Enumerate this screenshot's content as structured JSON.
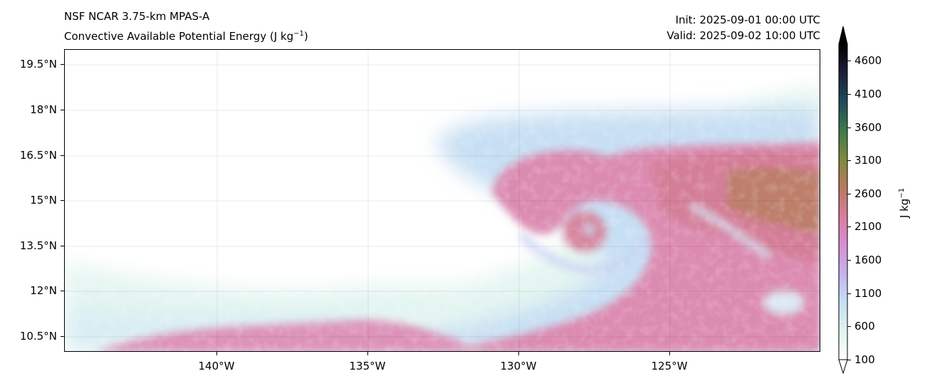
{
  "header": {
    "model": "NSF NCAR 3.75-km MPAS-A",
    "field_name": "Convective Available Potential Energy (J kg",
    "field_unit_exp": "−1",
    "field_close": ")",
    "init": "Init: 2025-09-01 00:00 UTC",
    "valid": "Valid: 2025-09-02 10:00 UTC"
  },
  "map": {
    "lat_labels": [
      "19.5°N",
      "18°N",
      "16.5°N",
      "15°N",
      "13.5°N",
      "12°N",
      "10.5°N"
    ],
    "lon_labels": [
      "140°W",
      "135°W",
      "130°W",
      "125°W"
    ]
  },
  "colorbar": {
    "label": "J kg",
    "label_exp": "−1",
    "ticks": [
      "4600",
      "4100",
      "3600",
      "3100",
      "2600",
      "2100",
      "1600",
      "1100",
      "600",
      "100"
    ],
    "range": [
      100,
      4850
    ],
    "colors": [
      "#ffffff",
      "#dff3f0",
      "#c5dff5",
      "#c3b2ee",
      "#d88fd0",
      "#d97da0",
      "#b9795e",
      "#7d8a3b",
      "#3b7a4a",
      "#1f4a5a",
      "#1c1e3a",
      "#000000"
    ]
  }
}
